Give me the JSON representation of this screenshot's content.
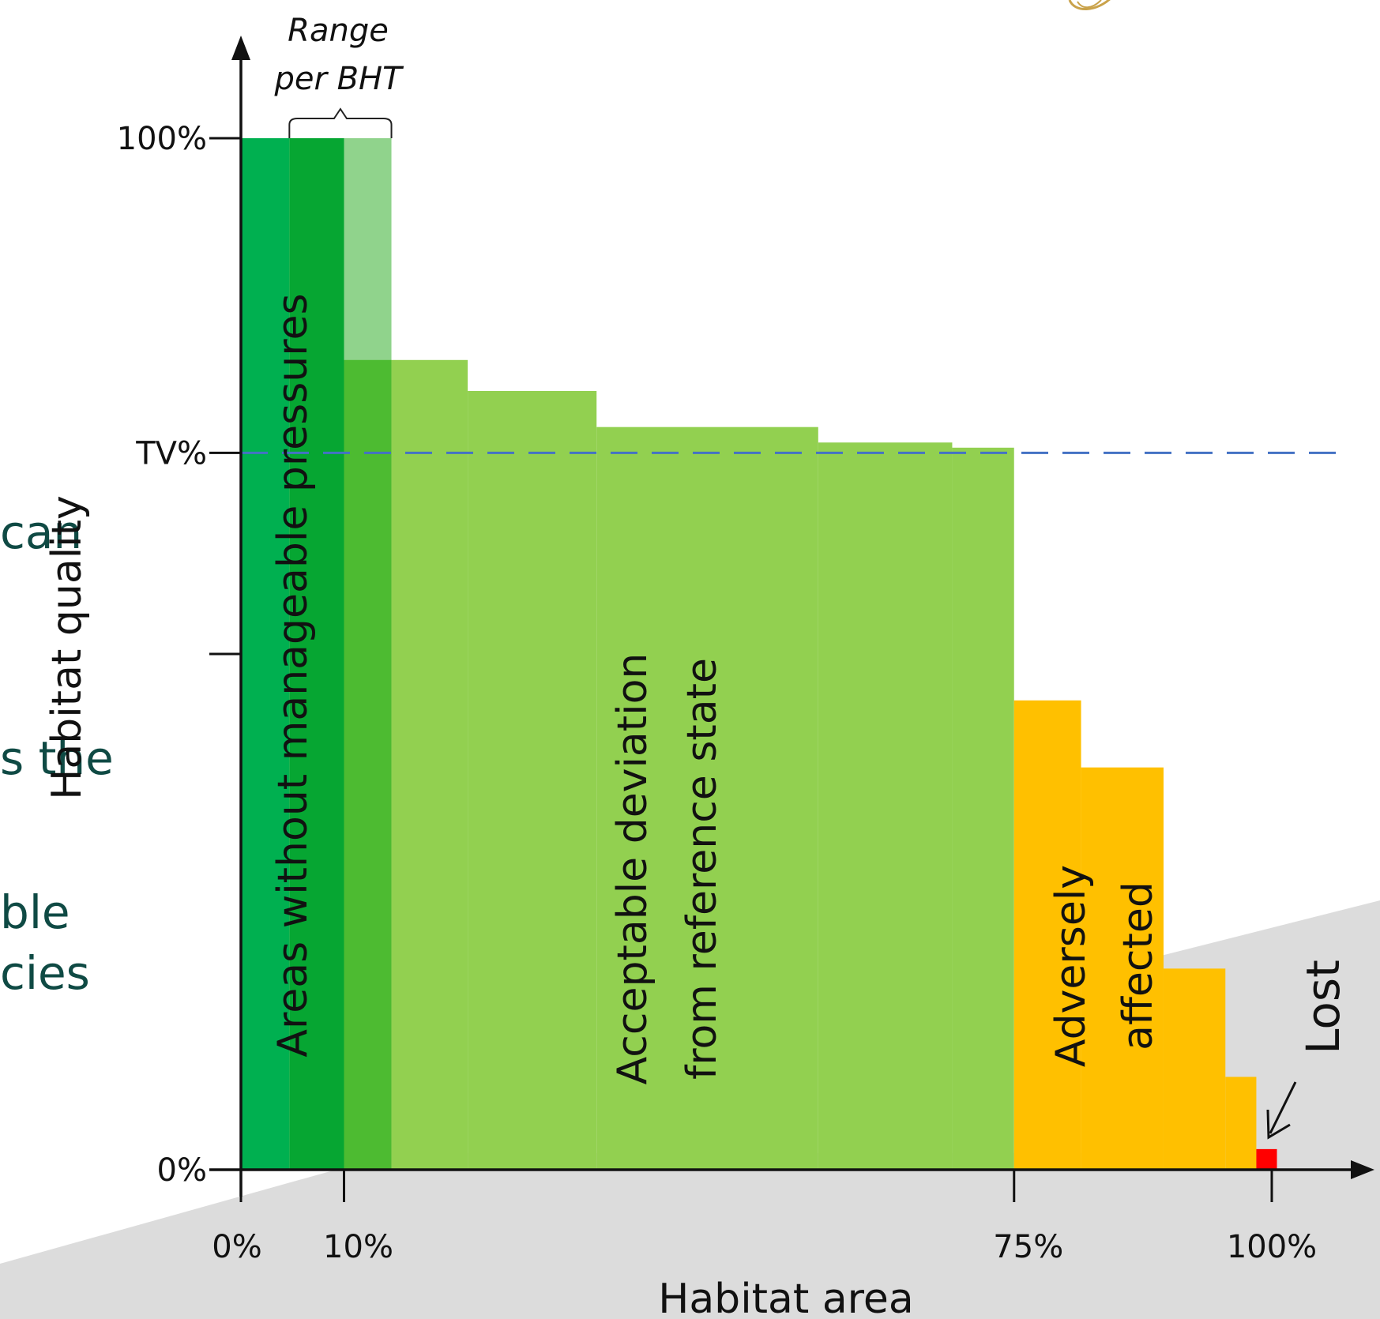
{
  "background_text_fragments": [
    "can",
    "s the",
    "ble",
    "cies"
  ],
  "chart_data": {
    "type": "bar",
    "xlabel": "Habitat area",
    "ylabel": "Habitat quality",
    "xlim": [
      0,
      100
    ],
    "ylim": [
      0,
      100
    ],
    "threshold_value": 69.5,
    "yticks": [
      {
        "value": 100,
        "label": "100%"
      },
      {
        "value": 69.5,
        "label": "TV%"
      },
      {
        "value": 50,
        "label": ""
      },
      {
        "value": 0,
        "label": "0%"
      }
    ],
    "xticks": [
      {
        "value": 0,
        "label": "0%"
      },
      {
        "value": 10,
        "label": "10%"
      },
      {
        "value": 75,
        "label": "75%"
      },
      {
        "value": 100,
        "label": "100%"
      }
    ],
    "bands": [
      {
        "start": 0,
        "end": 4.7,
        "value": 100,
        "color": "#00b050"
      },
      {
        "start": 4.7,
        "end": 10,
        "value": 100,
        "color": "#06a632"
      },
      {
        "start": 10,
        "end": 14.6,
        "value": 100,
        "color": "#90d38c"
      },
      {
        "start": 10,
        "end": 14.6,
        "value": 78.5,
        "color": "#4dbb31"
      },
      {
        "start": 14.6,
        "end": 22,
        "value": 78.5,
        "color": "#92d050"
      },
      {
        "start": 22,
        "end": 34.5,
        "value": 75.5,
        "color": "#92d050"
      },
      {
        "start": 34.5,
        "end": 56,
        "value": 72,
        "color": "#92d050"
      },
      {
        "start": 56,
        "end": 69,
        "value": 70.5,
        "color": "#92d050"
      },
      {
        "start": 69,
        "end": 75,
        "value": 70,
        "color": "#92d050"
      },
      {
        "start": 75,
        "end": 81.5,
        "value": 45.5,
        "color": "#ffc000"
      },
      {
        "start": 81.5,
        "end": 89.5,
        "value": 39,
        "color": "#ffc000"
      },
      {
        "start": 89.5,
        "end": 95.5,
        "value": 19.5,
        "color": "#ffc000"
      },
      {
        "start": 95.5,
        "end": 98.5,
        "value": 9,
        "color": "#ffc000"
      },
      {
        "start": 98.5,
        "end": 100.5,
        "value": 2,
        "color": "#ff0000"
      }
    ],
    "region_labels": [
      {
        "text": "Areas without manageable pressures"
      },
      {
        "line1": "Acceptable deviation",
        "line2": "from reference state"
      },
      {
        "line1": "Adversely",
        "line2": "affected"
      },
      {
        "text": "Lost"
      }
    ],
    "range_label": {
      "line1": "Range",
      "line2": "per BHT"
    },
    "colors": {
      "threshold_line": "#4472c4",
      "axis": "#111111",
      "background_shape": "#dcdcdc"
    }
  }
}
